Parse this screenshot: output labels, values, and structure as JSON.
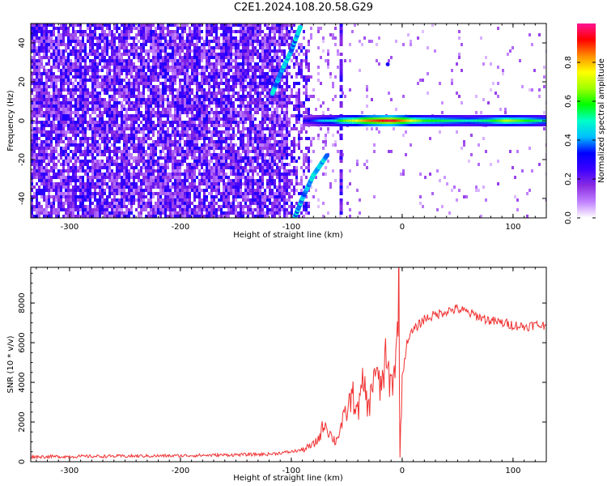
{
  "title": "C2E1.2024.108.20.58.G29",
  "colors": {
    "snr_line": "#f03232",
    "background": "#ffffff",
    "axis": "#000000",
    "colorbar_stops": [
      "#ffffff",
      "#c080ff",
      "#8a2be2",
      "#3b00ff",
      "#0000ff",
      "#00bfff",
      "#00ffc8",
      "#00ff00",
      "#a0ff00",
      "#ffff00",
      "#ff8c00",
      "#ff0000",
      "#ff1493"
    ]
  },
  "chart_data": [
    {
      "type": "heatmap",
      "xlabel": "Height of straight line (km)",
      "ylabel": "Frequency (Hz)",
      "xlim": [
        -335,
        130
      ],
      "ylim": [
        -50,
        50
      ],
      "xticks": [
        -300,
        -200,
        -100,
        0,
        100
      ],
      "yticks": [
        -40,
        -20,
        0,
        20,
        40
      ],
      "xtick_labels": [
        "-300",
        "-200",
        "-100",
        "0",
        "100"
      ],
      "ytick_labels": [
        "-40",
        "-20",
        "0",
        "20",
        "40"
      ],
      "colorbar": {
        "label": "Normalized spectral amplitude",
        "range": [
          0.0,
          1.0
        ],
        "ticks": [
          0.0,
          0.2,
          0.4,
          0.6,
          0.8
        ],
        "tick_labels": [
          "0.0",
          "0.2",
          "0.4",
          "0.6",
          "0.8"
        ],
        "colormap": "white-purple-blue-cyan-green-yellow-red-magenta"
      },
      "features": {
        "noise_region_x": [
          -335,
          -85
        ],
        "noise_level": 0.25,
        "main_band": {
          "freq": 0,
          "points": [
            {
              "x": -88,
              "amp": 0.3
            },
            {
              "x": -80,
              "amp": 0.35
            },
            {
              "x": -70,
              "amp": 0.45
            },
            {
              "x": -60,
              "amp": 0.5
            },
            {
              "x": -50,
              "amp": 0.65
            },
            {
              "x": -40,
              "amp": 0.75
            },
            {
              "x": -30,
              "amp": 0.85
            },
            {
              "x": -20,
              "amp": 0.9
            },
            {
              "x": -10,
              "amp": 0.95
            },
            {
              "x": 0,
              "amp": 0.85
            },
            {
              "x": 20,
              "amp": 0.6
            },
            {
              "x": 40,
              "amp": 0.55
            },
            {
              "x": 60,
              "amp": 0.5
            },
            {
              "x": 80,
              "amp": 0.55
            },
            {
              "x": 95,
              "amp": 0.7
            },
            {
              "x": 110,
              "amp": 0.6
            },
            {
              "x": 130,
              "amp": 0.5
            }
          ]
        },
        "upper_streak": [
          {
            "x": -117,
            "y": 14
          },
          {
            "x": -110,
            "y": 24
          },
          {
            "x": -100,
            "y": 36
          },
          {
            "x": -92,
            "y": 48
          }
        ],
        "lower_streak": [
          {
            "x": -97,
            "y": -50
          },
          {
            "x": -90,
            "y": -40
          },
          {
            "x": -80,
            "y": -28
          },
          {
            "x": -68,
            "y": -18
          }
        ],
        "vertical_spike_x": -55,
        "isolated_point": {
          "x": -13,
          "y": 29
        }
      }
    },
    {
      "type": "line",
      "xlabel": "Height of straight line (km)",
      "ylabel": "SNR (10 * v/v)",
      "xlim": [
        -335,
        130
      ],
      "ylim": [
        0,
        9800
      ],
      "xticks": [
        -300,
        -200,
        -100,
        0,
        100
      ],
      "yticks": [
        0,
        2000,
        4000,
        6000,
        8000
      ],
      "xtick_labels": [
        "-300",
        "-200",
        "-100",
        "0",
        "100"
      ],
      "ytick_labels": [
        "0",
        "2000",
        "4000",
        "6000",
        "8000"
      ],
      "series": [
        {
          "x": [
            -335,
            -300,
            -250,
            -200,
            -150,
            -120,
            -100,
            -90,
            -80,
            -75,
            -70,
            -65,
            -60,
            -55,
            -50,
            -45,
            -40,
            -35,
            -30,
            -25,
            -20,
            -15,
            -10,
            -5,
            -3,
            -2,
            0,
            5,
            10,
            15,
            20,
            30,
            40,
            50,
            60,
            70,
            80,
            90,
            100,
            110,
            120,
            130
          ],
          "y": [
            250,
            260,
            280,
            300,
            350,
            380,
            500,
            600,
            850,
            1200,
            2000,
            1400,
            1000,
            1800,
            2500,
            3400,
            2500,
            4000,
            2600,
            4800,
            3600,
            5000,
            3800,
            5400,
            9700,
            200,
            4300,
            6200,
            6600,
            6900,
            7200,
            7400,
            7600,
            7700,
            7500,
            7300,
            7100,
            7000,
            6900,
            6800,
            6900,
            6850
          ]
        }
      ]
    }
  ]
}
